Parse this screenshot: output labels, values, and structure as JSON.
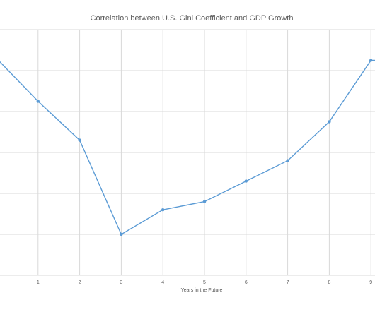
{
  "chart_data": {
    "type": "line",
    "title": "Correlation between U.S. Gini Coefficient and GDP Growth",
    "xlabel": "Years in the  Future",
    "ylabel": "",
    "x_tick_labels": [
      "1",
      "2",
      "3",
      "4",
      "5",
      "6",
      "7",
      "8",
      "9"
    ],
    "x_range": [
      0,
      9.1
    ],
    "y_range": [
      0,
      6
    ],
    "grid": true,
    "legend": "none",
    "series": [
      {
        "color": "#5b9bd5",
        "points": [
          {
            "x": 0,
            "y": 5.3
          },
          {
            "x": 1,
            "y": 4.25
          },
          {
            "x": 2,
            "y": 3.3
          },
          {
            "x": 3,
            "y": 1.0
          },
          {
            "x": 4,
            "y": 1.6
          },
          {
            "x": 5,
            "y": 1.8
          },
          {
            "x": 6,
            "y": 2.3
          },
          {
            "x": 7,
            "y": 2.8
          },
          {
            "x": 8,
            "y": 3.75
          },
          {
            "x": 9,
            "y": 5.25
          },
          {
            "x": 9.2,
            "y": 5.25
          }
        ]
      }
    ]
  }
}
